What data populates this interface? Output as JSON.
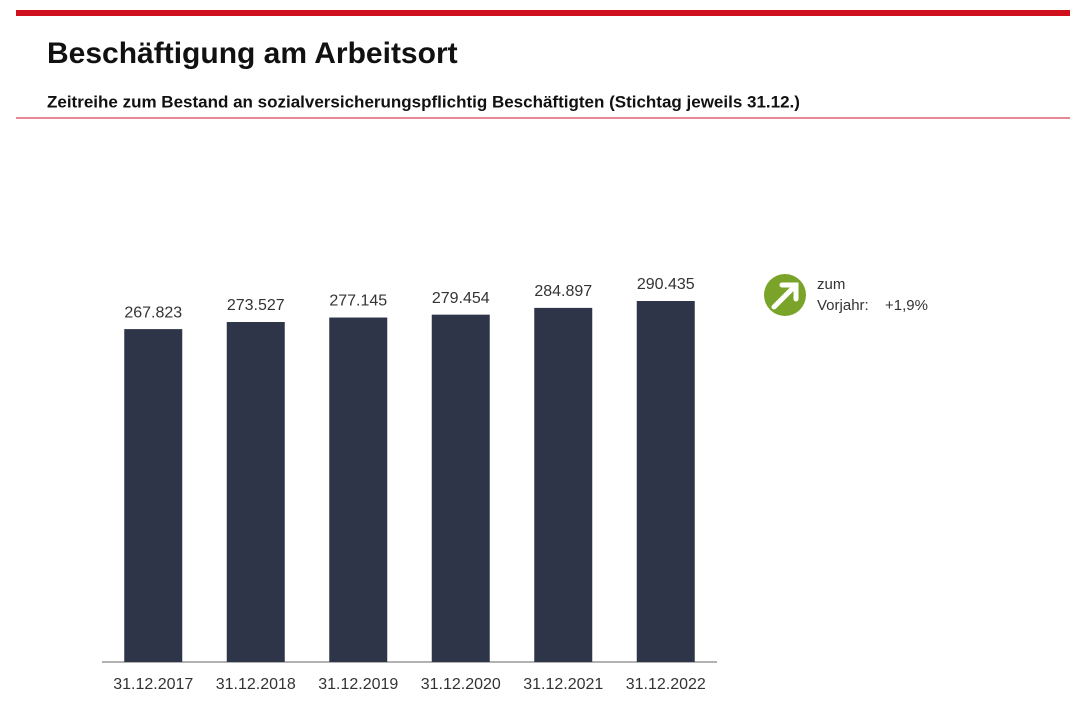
{
  "chart_data": {
    "type": "bar",
    "title": "Beschäftigung am Arbeitsort",
    "subtitle": "Zeitreihe zum Bestand an sozialversicherungspflichtig Beschäftigten (Stichtag jeweils 31.12.)",
    "categories": [
      "31.12.2017",
      "31.12.2018",
      "31.12.2019",
      "31.12.2020",
      "31.12.2021",
      "31.12.2022"
    ],
    "values": [
      267823,
      273527,
      277145,
      279454,
      284897,
      290435
    ],
    "value_labels": [
      "267.823",
      "273.527",
      "277.145",
      "279.454",
      "284.897",
      "290.435"
    ],
    "color": "#2e3548",
    "annotation": {
      "line1": "zum",
      "line2": "Vorjahr:",
      "change": "+1,9%"
    }
  }
}
